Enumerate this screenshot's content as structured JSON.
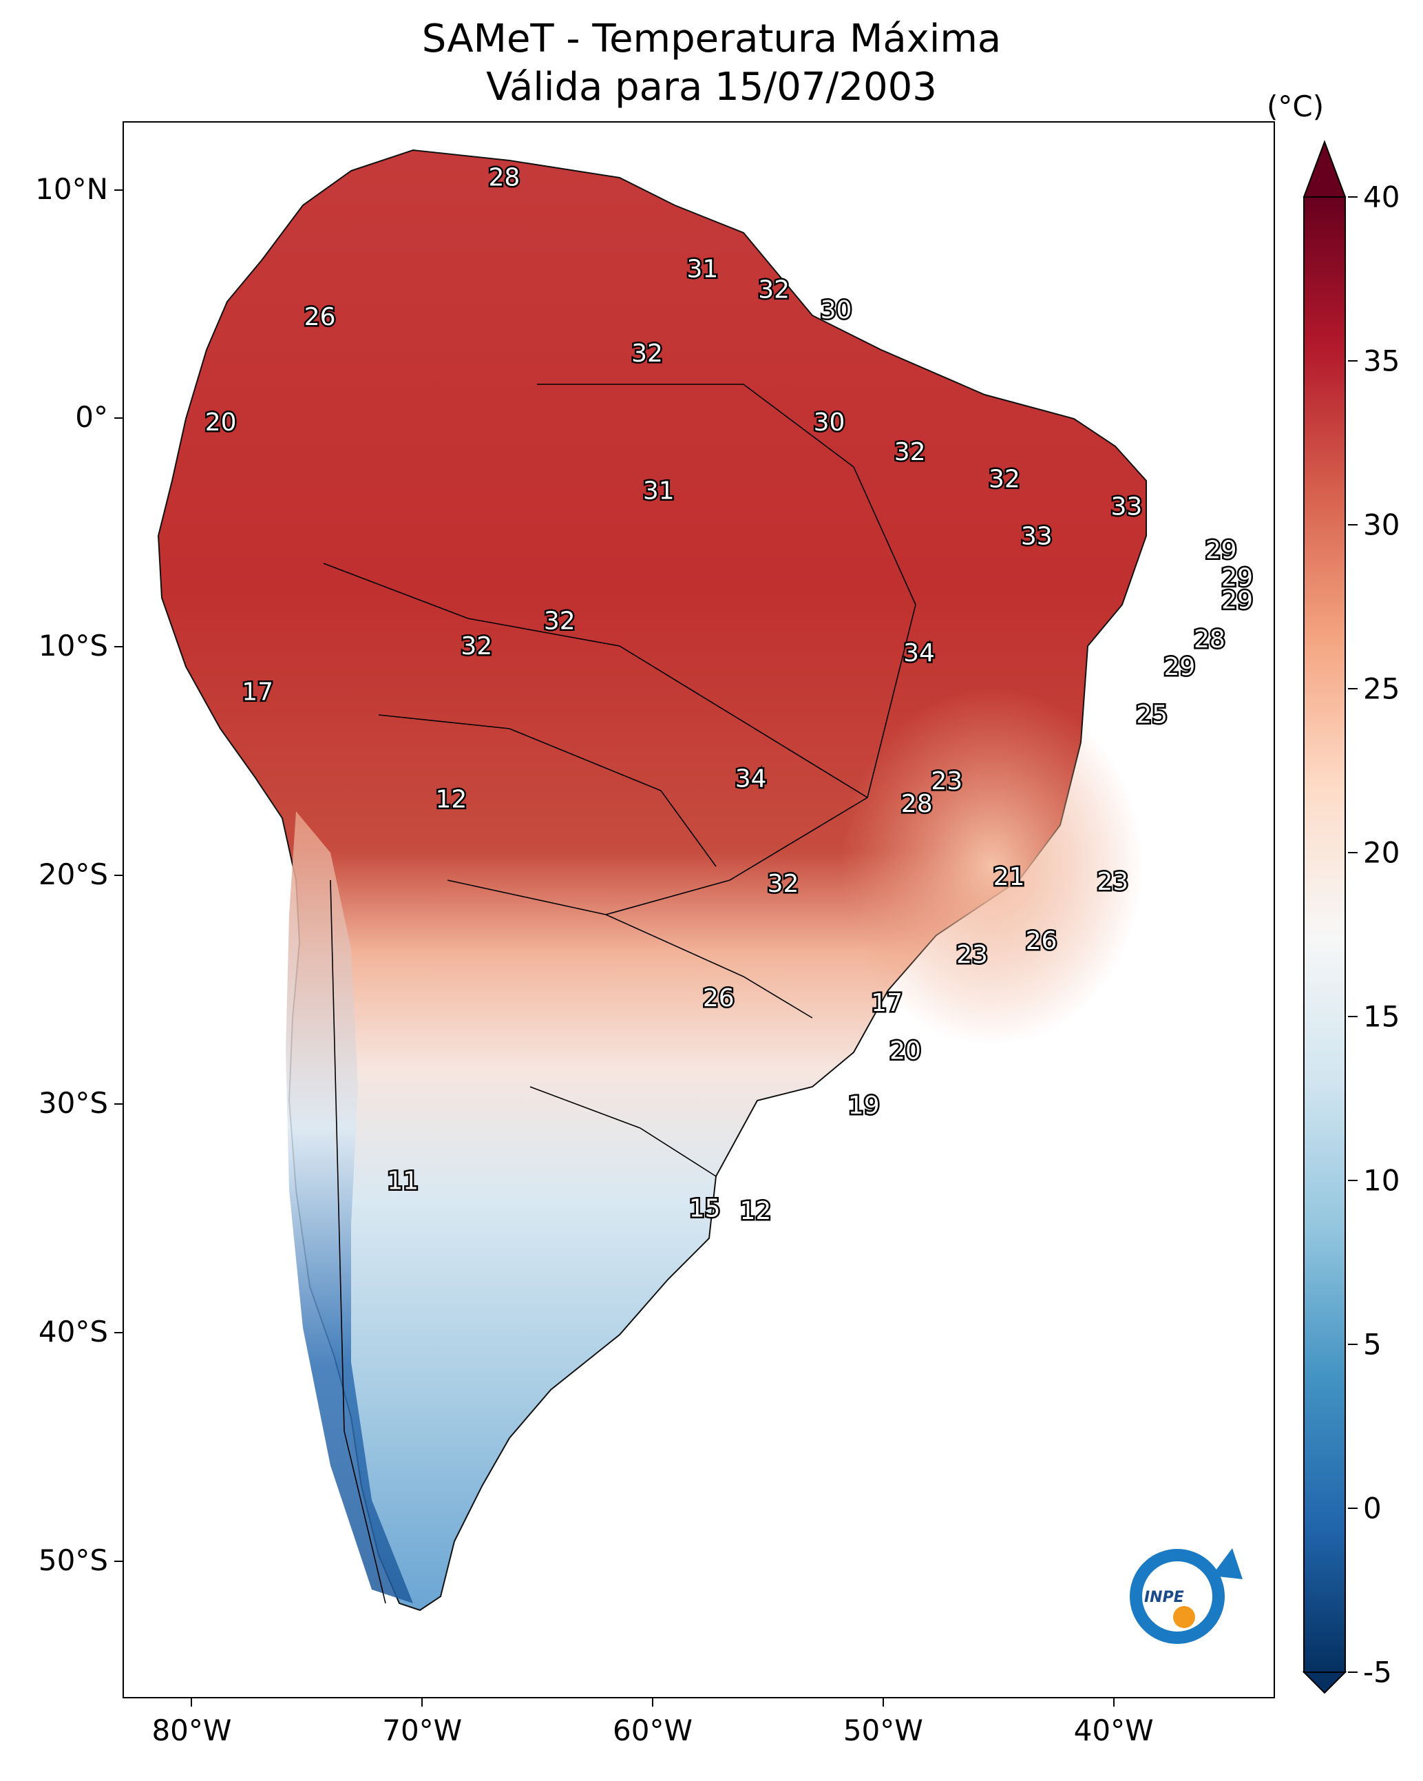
{
  "title": {
    "line1": "SAMeT - Temperatura Máxima",
    "line2": "Válida para 15/07/2003"
  },
  "map": {
    "lon_range": [
      -83,
      -33
    ],
    "lat_range": [
      -56,
      13
    ],
    "lon_ticks": [
      {
        "value": -80,
        "label": "80°W"
      },
      {
        "value": -70,
        "label": "70°W"
      },
      {
        "value": -60,
        "label": "60°W"
      },
      {
        "value": -50,
        "label": "50°W"
      },
      {
        "value": -40,
        "label": "40°W"
      }
    ],
    "lat_ticks": [
      {
        "value": 10,
        "label": "10°N"
      },
      {
        "value": 0,
        "label": "0°"
      },
      {
        "value": -10,
        "label": "10°S"
      },
      {
        "value": -20,
        "label": "20°S"
      },
      {
        "value": -30,
        "label": "30°S"
      },
      {
        "value": -40,
        "label": "40°S"
      },
      {
        "value": -50,
        "label": "50°S"
      }
    ],
    "contour_labels": [
      {
        "lon": -66.5,
        "lat": 10.6,
        "text": "28"
      },
      {
        "lon": -74.5,
        "lat": 4.5,
        "text": "26"
      },
      {
        "lon": -57.9,
        "lat": 6.6,
        "text": "31"
      },
      {
        "lon": -54.8,
        "lat": 5.7,
        "text": "32"
      },
      {
        "lon": -52.1,
        "lat": 4.8,
        "text": "30"
      },
      {
        "lon": -60.3,
        "lat": 2.9,
        "text": "32"
      },
      {
        "lon": -78.8,
        "lat": -0.1,
        "text": "20"
      },
      {
        "lon": -52.4,
        "lat": -0.1,
        "text": "30"
      },
      {
        "lon": -48.9,
        "lat": -1.4,
        "text": "32"
      },
      {
        "lon": -44.8,
        "lat": -2.6,
        "text": "32"
      },
      {
        "lon": -59.8,
        "lat": -3.1,
        "text": "31"
      },
      {
        "lon": -39.5,
        "lat": -3.8,
        "text": "33"
      },
      {
        "lon": -43.4,
        "lat": -5.1,
        "text": "33"
      },
      {
        "lon": -35.4,
        "lat": -5.7,
        "text": "29"
      },
      {
        "lon": -34.7,
        "lat": -6.9,
        "text": "29"
      },
      {
        "lon": -34.7,
        "lat": -7.9,
        "text": "29"
      },
      {
        "lon": -35.9,
        "lat": -9.6,
        "text": "28"
      },
      {
        "lon": -37.2,
        "lat": -10.8,
        "text": "29"
      },
      {
        "lon": -64.1,
        "lat": -8.8,
        "text": "32"
      },
      {
        "lon": -67.7,
        "lat": -9.9,
        "text": "32"
      },
      {
        "lon": -48.5,
        "lat": -10.2,
        "text": "34"
      },
      {
        "lon": -77.2,
        "lat": -11.9,
        "text": "17"
      },
      {
        "lon": -38.4,
        "lat": -12.9,
        "text": "25"
      },
      {
        "lon": -55.8,
        "lat": -15.7,
        "text": "34"
      },
      {
        "lon": -47.3,
        "lat": -15.8,
        "text": "23"
      },
      {
        "lon": -48.6,
        "lat": -16.8,
        "text": "28"
      },
      {
        "lon": -68.8,
        "lat": -16.6,
        "text": "12"
      },
      {
        "lon": -44.6,
        "lat": -20.0,
        "text": "21"
      },
      {
        "lon": -40.1,
        "lat": -20.2,
        "text": "23"
      },
      {
        "lon": -54.4,
        "lat": -20.3,
        "text": "32"
      },
      {
        "lon": -43.2,
        "lat": -22.8,
        "text": "26"
      },
      {
        "lon": -46.2,
        "lat": -23.4,
        "text": "23"
      },
      {
        "lon": -57.2,
        "lat": -25.3,
        "text": "26"
      },
      {
        "lon": -49.9,
        "lat": -25.5,
        "text": "17"
      },
      {
        "lon": -49.1,
        "lat": -27.6,
        "text": "20"
      },
      {
        "lon": -50.9,
        "lat": -30.0,
        "text": "19"
      },
      {
        "lon": -70.9,
        "lat": -33.3,
        "text": "11"
      },
      {
        "lon": -57.8,
        "lat": -34.5,
        "text": "15"
      },
      {
        "lon": -55.6,
        "lat": -34.6,
        "text": "12"
      }
    ]
  },
  "colorbar": {
    "unit": "(°C)",
    "min": -5,
    "max": 40,
    "ticks": [
      {
        "value": 40,
        "label": "40"
      },
      {
        "value": 35,
        "label": "35"
      },
      {
        "value": 30,
        "label": "30"
      },
      {
        "value": 25,
        "label": "25"
      },
      {
        "value": 20,
        "label": "20"
      },
      {
        "value": 15,
        "label": "15"
      },
      {
        "value": 10,
        "label": "10"
      },
      {
        "value": 5,
        "label": "5"
      },
      {
        "value": 0,
        "label": "0"
      },
      {
        "value": -5,
        "label": "-5"
      }
    ],
    "colors": [
      "#053061",
      "#2166ac",
      "#4393c3",
      "#92c5de",
      "#d1e5f0",
      "#f7f7f7",
      "#fddbc7",
      "#f4a582",
      "#d6604d",
      "#b2182b",
      "#67001f"
    ]
  },
  "logo": {
    "text": "INPE",
    "colors": {
      "blue": "#1a7ac4",
      "orange": "#f39a1d"
    }
  }
}
